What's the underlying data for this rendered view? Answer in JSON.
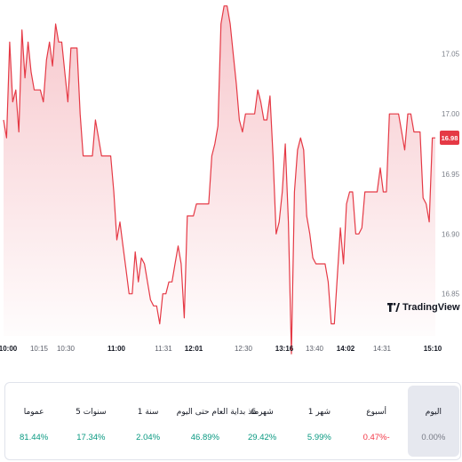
{
  "chart_data": {
    "type": "area",
    "x_tick_labels": [
      "10:00",
      "10:15",
      "10:30",
      "11:00",
      "11:31",
      "12:01",
      "12:30",
      "13:16",
      "13:40",
      "14:02",
      "14:31",
      "15:10"
    ],
    "x_tick_bold": [
      true,
      false,
      false,
      true,
      false,
      true,
      false,
      true,
      false,
      true,
      false,
      true
    ],
    "y_tick_labels": [
      "17.05",
      "17.00",
      "16.95",
      "16.90",
      "16.85"
    ],
    "y_ticks": [
      17.05,
      17.0,
      16.95,
      16.9,
      16.85
    ],
    "ylim": [
      16.815,
      17.095
    ],
    "last_price": "16.98",
    "colors": {
      "line": "#e53945",
      "fill_top": "#f7c7cc",
      "fill_bottom": "#ffffff",
      "badge": "#e53945"
    },
    "values": [
      16.995,
      16.98,
      17.06,
      17.01,
      17.02,
      16.985,
      17.07,
      17.03,
      17.06,
      17.035,
      17.02,
      17.02,
      17.02,
      17.01,
      17.045,
      17.06,
      17.04,
      17.075,
      17.06,
      17.06,
      17.035,
      17.01,
      17.055,
      17.055,
      17.055,
      17.0,
      16.965,
      16.965,
      16.965,
      16.965,
      16.995,
      16.98,
      16.965,
      16.965,
      16.965,
      16.965,
      16.935,
      16.895,
      16.91,
      16.89,
      16.87,
      16.85,
      16.85,
      16.885,
      16.86,
      16.88,
      16.875,
      16.86,
      16.845,
      16.84,
      16.84,
      16.825,
      16.85,
      16.85,
      16.86,
      16.86,
      16.875,
      16.89,
      16.875,
      16.83,
      16.915,
      16.915,
      16.915,
      16.925,
      16.925,
      16.925,
      16.925,
      16.925,
      16.965,
      16.975,
      16.99,
      17.075,
      17.09,
      17.09,
      17.075,
      17.05,
      17.025,
      16.995,
      16.985,
      17.0,
      17.0,
      17.0,
      17.0,
      17.02,
      17.01,
      16.995,
      16.995,
      17.015,
      16.965,
      16.9,
      16.91,
      16.935,
      16.975,
      16.91,
      16.8,
      16.935,
      16.97,
      16.98,
      16.97,
      16.915,
      16.9,
      16.88,
      16.875,
      16.875,
      16.875,
      16.875,
      16.86,
      16.825,
      16.825,
      16.865,
      16.905,
      16.875,
      16.925,
      16.935,
      16.935,
      16.9,
      16.9,
      16.905,
      16.935,
      16.935,
      16.935,
      16.935,
      16.935,
      16.955,
      16.935,
      16.935,
      17.0,
      17.0,
      17.0,
      17.0,
      16.985,
      16.97,
      17.0,
      17.0,
      16.985,
      16.985,
      16.985,
      16.93,
      16.925,
      16.91,
      16.98,
      16.98
    ]
  },
  "watermark": {
    "text": "TradingView"
  },
  "periods": [
    {
      "label": "اليوم",
      "value": "0.00%",
      "color": "#787b86",
      "selected": true
    },
    {
      "label": "أسبوع",
      "value": "0.47%-",
      "color": "#f23645",
      "selected": false
    },
    {
      "label": "1 شهر",
      "value": "5.99%",
      "color": "#089981",
      "selected": false
    },
    {
      "label": "6 شهر",
      "value": "29.42%",
      "color": "#089981",
      "selected": false
    },
    {
      "label": "منذ بداية العام حتى اليوم",
      "value": "46.89%",
      "color": "#089981",
      "selected": false
    },
    {
      "label": "1 سنة",
      "value": "2.04%",
      "color": "#089981",
      "selected": false
    },
    {
      "label": "5 سنوات",
      "value": "17.34%",
      "color": "#089981",
      "selected": false
    },
    {
      "label": "عموما",
      "value": "81.44%",
      "color": "#089981",
      "selected": false
    }
  ]
}
